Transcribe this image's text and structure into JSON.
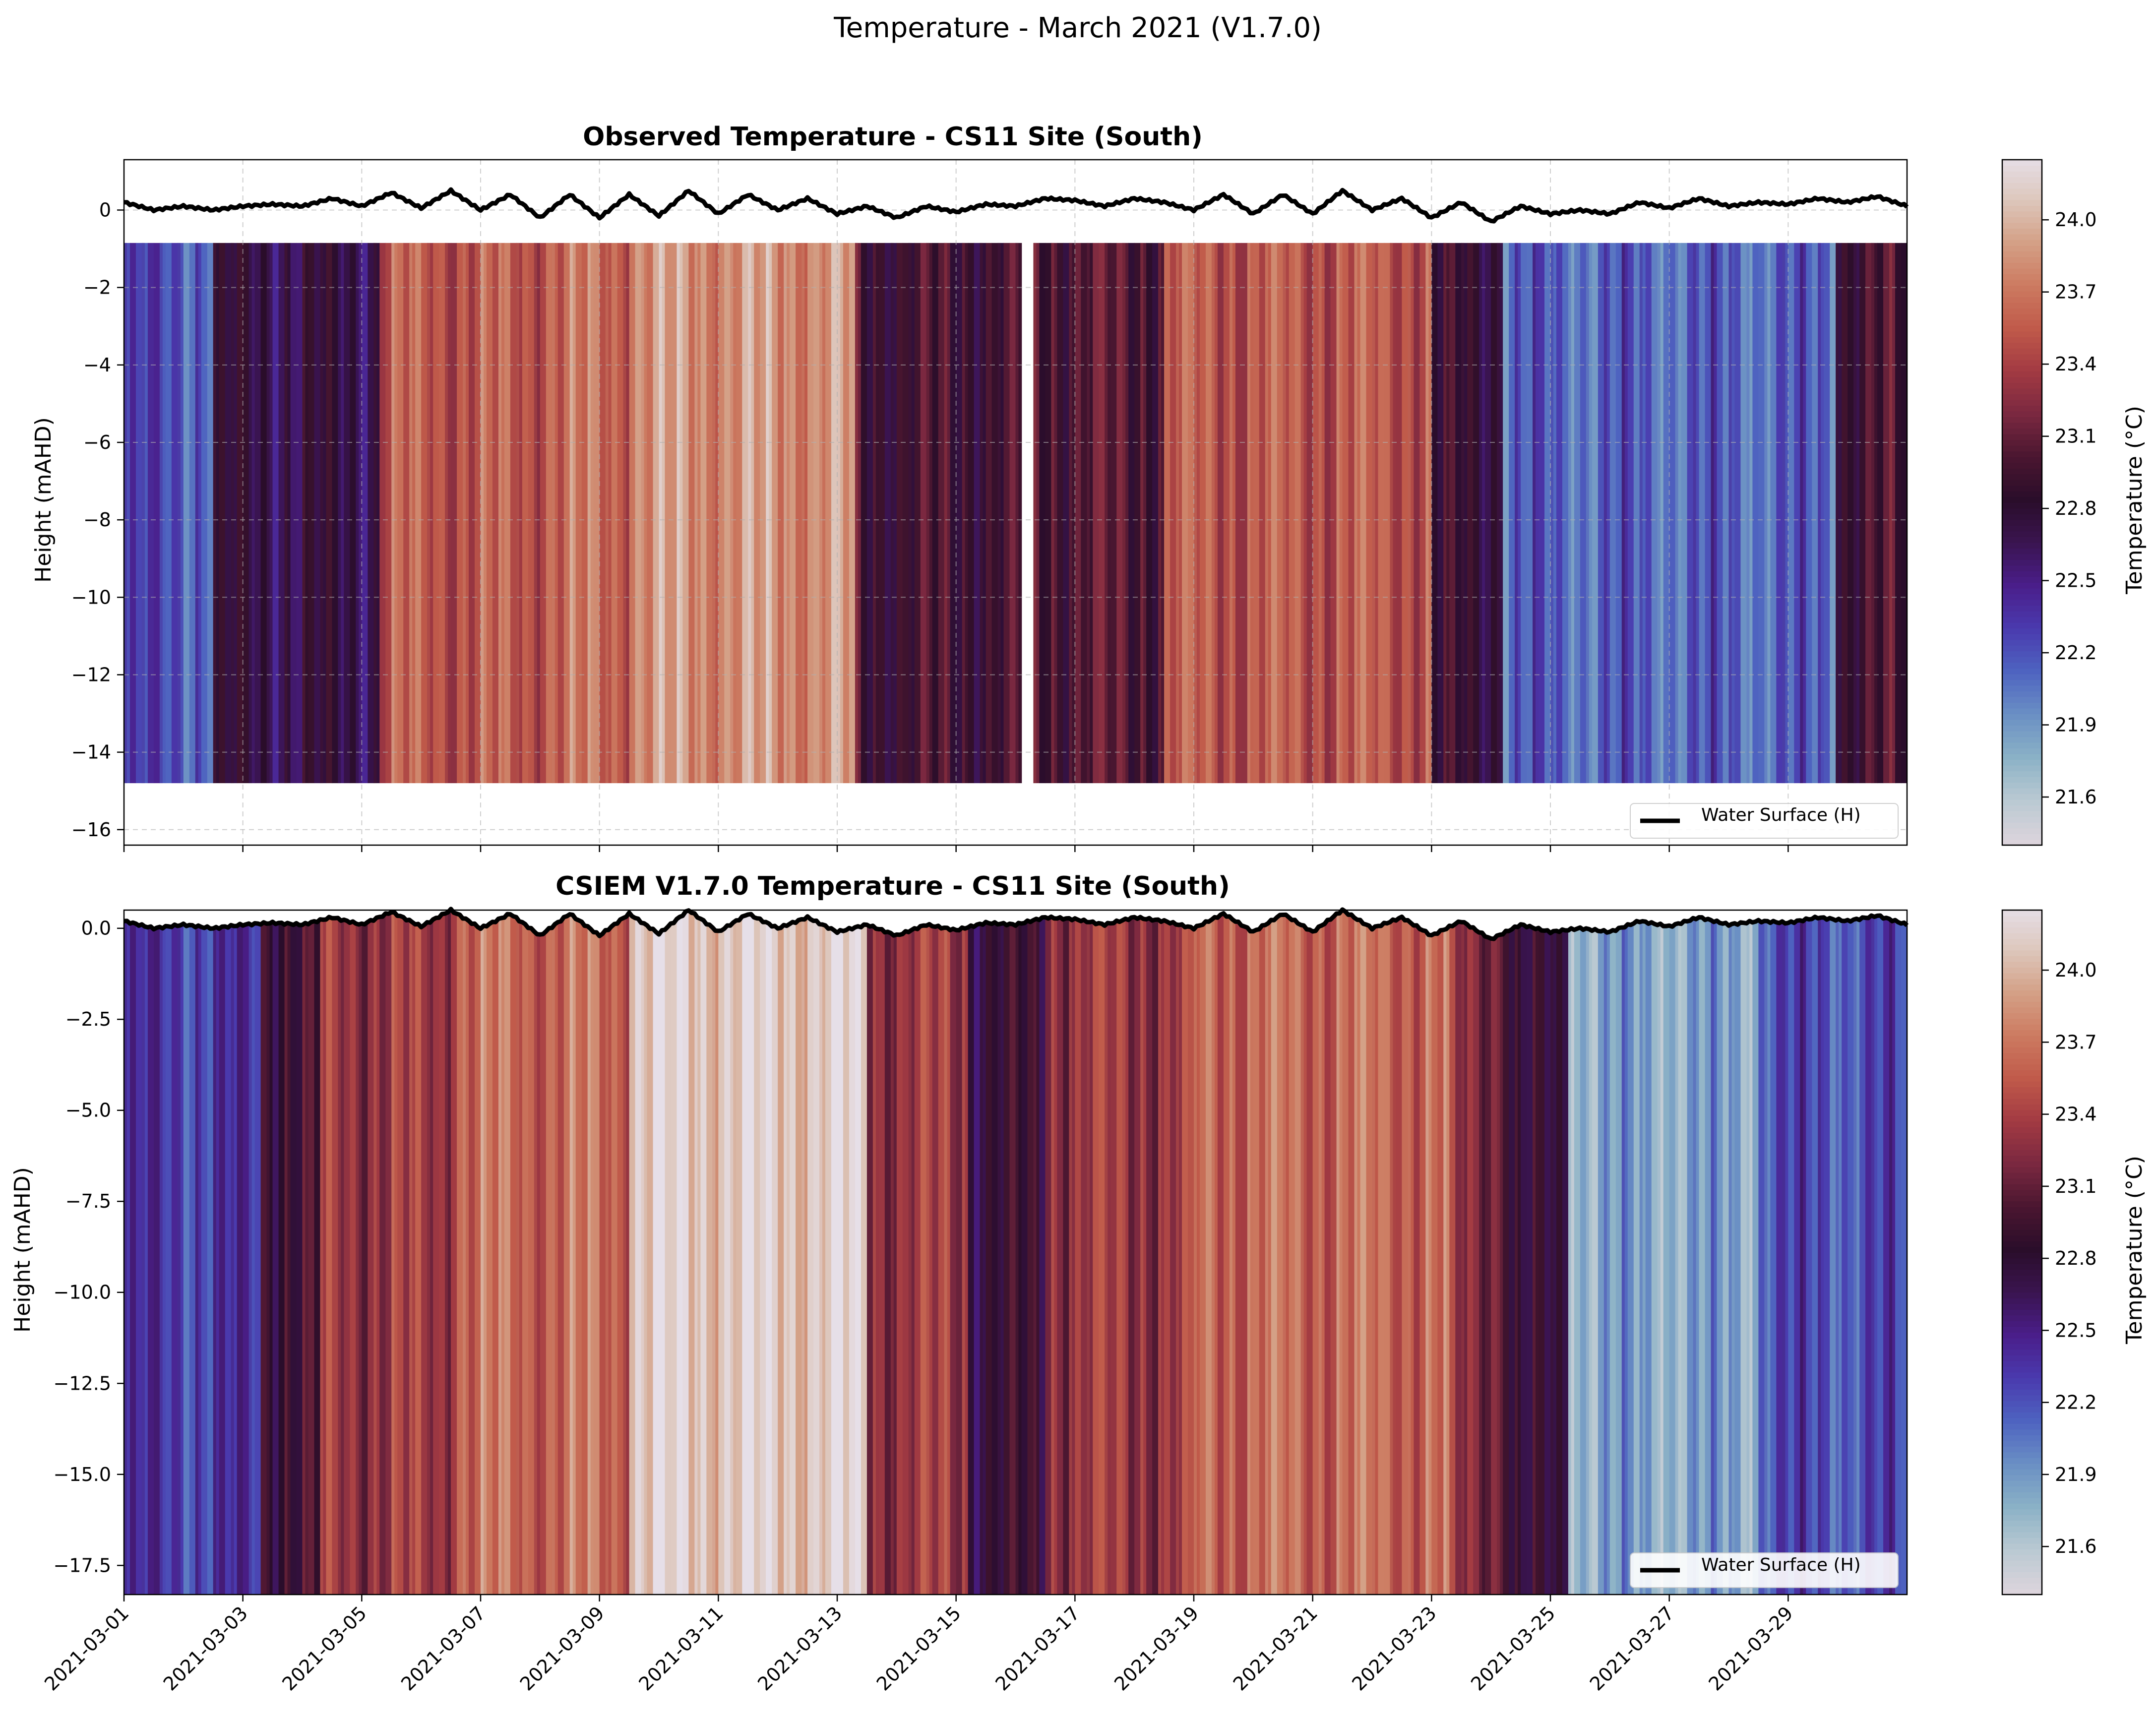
{
  "figure": {
    "suptitle": "Temperature - March 2021 (V1.7.0)"
  },
  "colors": {
    "colormap": [
      "#dcd4dc",
      "#b9c9d2",
      "#8ab1c6",
      "#6a8fc4",
      "#4e63c0",
      "#4a3aae",
      "#4a1e8a",
      "#3a1450",
      "#2a0d2a",
      "#4a1630",
      "#7a2840",
      "#a23a42",
      "#c05a4a",
      "#cc7a60",
      "#d4a086",
      "#ddc7bc",
      "#e6dfe8"
    ],
    "water_line": "#000000",
    "grid": "#b0b0b0"
  },
  "chart_data": [
    {
      "type": "heatmap",
      "title": "Observed Temperature - CS11 Site (South)",
      "xlabel": "",
      "ylabel": "Height (mAHD)",
      "ylim": [
        -16.4,
        1.3
      ],
      "yticks": [
        0,
        -2,
        -4,
        -6,
        -8,
        -10,
        -12,
        -14,
        -16
      ],
      "ytick_labels": [
        "0",
        "−2",
        "−4",
        "−6",
        "−8",
        "−10",
        "−12",
        "−14",
        "−16"
      ],
      "xlim_days": [
        0,
        30
      ],
      "grid": true,
      "legend": {
        "label": "Water Surface (H)",
        "position": "lower-right"
      },
      "colorbar": {
        "label": "Temperature (°C)",
        "range": [
          21.4,
          24.25
        ],
        "ticks": [
          21.6,
          21.9,
          22.2,
          22.5,
          22.8,
          23.1,
          23.4,
          23.7,
          24.0
        ],
        "tick_labels": [
          "21.6",
          "21.9",
          "22.2",
          "22.5",
          "22.8",
          "23.1",
          "23.4",
          "23.7",
          "24.0"
        ]
      },
      "data_top": -0.85,
      "data_bottom": -14.8,
      "gap_days": [
        15.1,
        15.3
      ],
      "segment_temps": [
        {
          "from": 0.0,
          "to": 1.5,
          "temp": 22.2
        },
        {
          "from": 1.5,
          "to": 4.3,
          "temp": 22.7
        },
        {
          "from": 4.3,
          "to": 7.0,
          "temp": 23.5
        },
        {
          "from": 7.0,
          "to": 8.5,
          "temp": 23.6
        },
        {
          "from": 8.5,
          "to": 12.3,
          "temp": 23.8
        },
        {
          "from": 12.3,
          "to": 15.1,
          "temp": 22.9
        },
        {
          "from": 15.3,
          "to": 17.5,
          "temp": 23.0
        },
        {
          "from": 17.5,
          "to": 22.0,
          "temp": 23.5
        },
        {
          "from": 22.0,
          "to": 23.2,
          "temp": 22.8
        },
        {
          "from": 23.2,
          "to": 28.8,
          "temp": 22.1
        },
        {
          "from": 28.8,
          "to": 30.0,
          "temp": 22.9
        }
      ]
    },
    {
      "type": "heatmap",
      "title": "CSIEM V1.7.0 Temperature - CS11 Site (South)",
      "xlabel": "",
      "ylabel": "Height (mAHD)",
      "ylim": [
        -18.3,
        0.5
      ],
      "yticks": [
        0,
        -2.5,
        -5,
        -7.5,
        -10,
        -12.5,
        -15,
        -17.5
      ],
      "ytick_labels": [
        "0.0",
        "−2.5",
        "−5.0",
        "−7.5",
        "−10.0",
        "−12.5",
        "−15.0",
        "−17.5"
      ],
      "xlim_days": [
        0,
        30
      ],
      "grid": false,
      "legend": {
        "label": "Water Surface (H)",
        "position": "lower-right"
      },
      "colorbar": {
        "label": "Temperature (°C)",
        "range": [
          21.4,
          24.25
        ],
        "ticks": [
          21.6,
          21.9,
          22.2,
          22.5,
          22.8,
          23.1,
          23.4,
          23.7,
          24.0
        ],
        "tick_labels": [
          "21.6",
          "21.9",
          "22.2",
          "22.5",
          "22.8",
          "23.1",
          "23.4",
          "23.7",
          "24.0"
        ]
      },
      "segment_temps": [
        {
          "from": 0.0,
          "to": 2.3,
          "temp": 22.3
        },
        {
          "from": 2.3,
          "to": 3.3,
          "temp": 22.9
        },
        {
          "from": 3.3,
          "to": 5.5,
          "temp": 23.3
        },
        {
          "from": 5.5,
          "to": 8.5,
          "temp": 23.6
        },
        {
          "from": 8.5,
          "to": 12.5,
          "temp": 24.1
        },
        {
          "from": 12.5,
          "to": 14.2,
          "temp": 23.3
        },
        {
          "from": 14.2,
          "to": 15.5,
          "temp": 22.8
        },
        {
          "from": 15.5,
          "to": 18.0,
          "temp": 23.3
        },
        {
          "from": 18.0,
          "to": 22.3,
          "temp": 23.6
        },
        {
          "from": 22.3,
          "to": 23.3,
          "temp": 23.2
        },
        {
          "from": 23.3,
          "to": 24.3,
          "temp": 22.7
        },
        {
          "from": 24.3,
          "to": 27.5,
          "temp": 21.8
        },
        {
          "from": 27.5,
          "to": 30.0,
          "temp": 22.2
        }
      ]
    }
  ],
  "water_surface": {
    "days": [
      0,
      0.5,
      1,
      1.5,
      2,
      2.5,
      3,
      3.5,
      4,
      4.5,
      5,
      5.5,
      6,
      6.5,
      7,
      7.5,
      8,
      8.5,
      9,
      9.5,
      10,
      10.5,
      11,
      11.5,
      12,
      12.5,
      13,
      13.5,
      14,
      14.5,
      15,
      15.5,
      16,
      16.5,
      17,
      17.5,
      18,
      18.5,
      19,
      19.5,
      20,
      20.5,
      21,
      21.5,
      22,
      22.5,
      23,
      23.5,
      24,
      24.5,
      25,
      25.5,
      26,
      26.5,
      27,
      27.5,
      28,
      28.5,
      29,
      29.5,
      30
    ],
    "values": [
      0.2,
      0.0,
      0.1,
      0.0,
      0.1,
      0.15,
      0.1,
      0.3,
      0.1,
      0.45,
      0.05,
      0.5,
      0.0,
      0.4,
      -0.2,
      0.4,
      -0.2,
      0.4,
      -0.15,
      0.5,
      -0.1,
      0.4,
      0.0,
      0.3,
      -0.1,
      0.1,
      -0.2,
      0.1,
      -0.05,
      0.15,
      0.1,
      0.3,
      0.25,
      0.1,
      0.3,
      0.2,
      0.0,
      0.4,
      -0.1,
      0.4,
      -0.1,
      0.5,
      0.0,
      0.3,
      -0.2,
      0.2,
      -0.3,
      0.1,
      -0.1,
      0.0,
      -0.1,
      0.2,
      0.05,
      0.3,
      0.1,
      0.2,
      0.15,
      0.3,
      0.2,
      0.35,
      0.1
    ]
  },
  "x_axis": {
    "start": "2021-03-01",
    "tick_days": [
      0,
      2,
      4,
      6,
      8,
      10,
      12,
      14,
      16,
      18,
      20,
      22,
      24,
      26,
      28
    ],
    "tick_labels": [
      "2021-03-01",
      "2021-03-03",
      "2021-03-05",
      "2021-03-07",
      "2021-03-09",
      "2021-03-11",
      "2021-03-13",
      "2021-03-15",
      "2021-03-17",
      "2021-03-19",
      "2021-03-21",
      "2021-03-23",
      "2021-03-25",
      "2021-03-27",
      "2021-03-29"
    ]
  }
}
